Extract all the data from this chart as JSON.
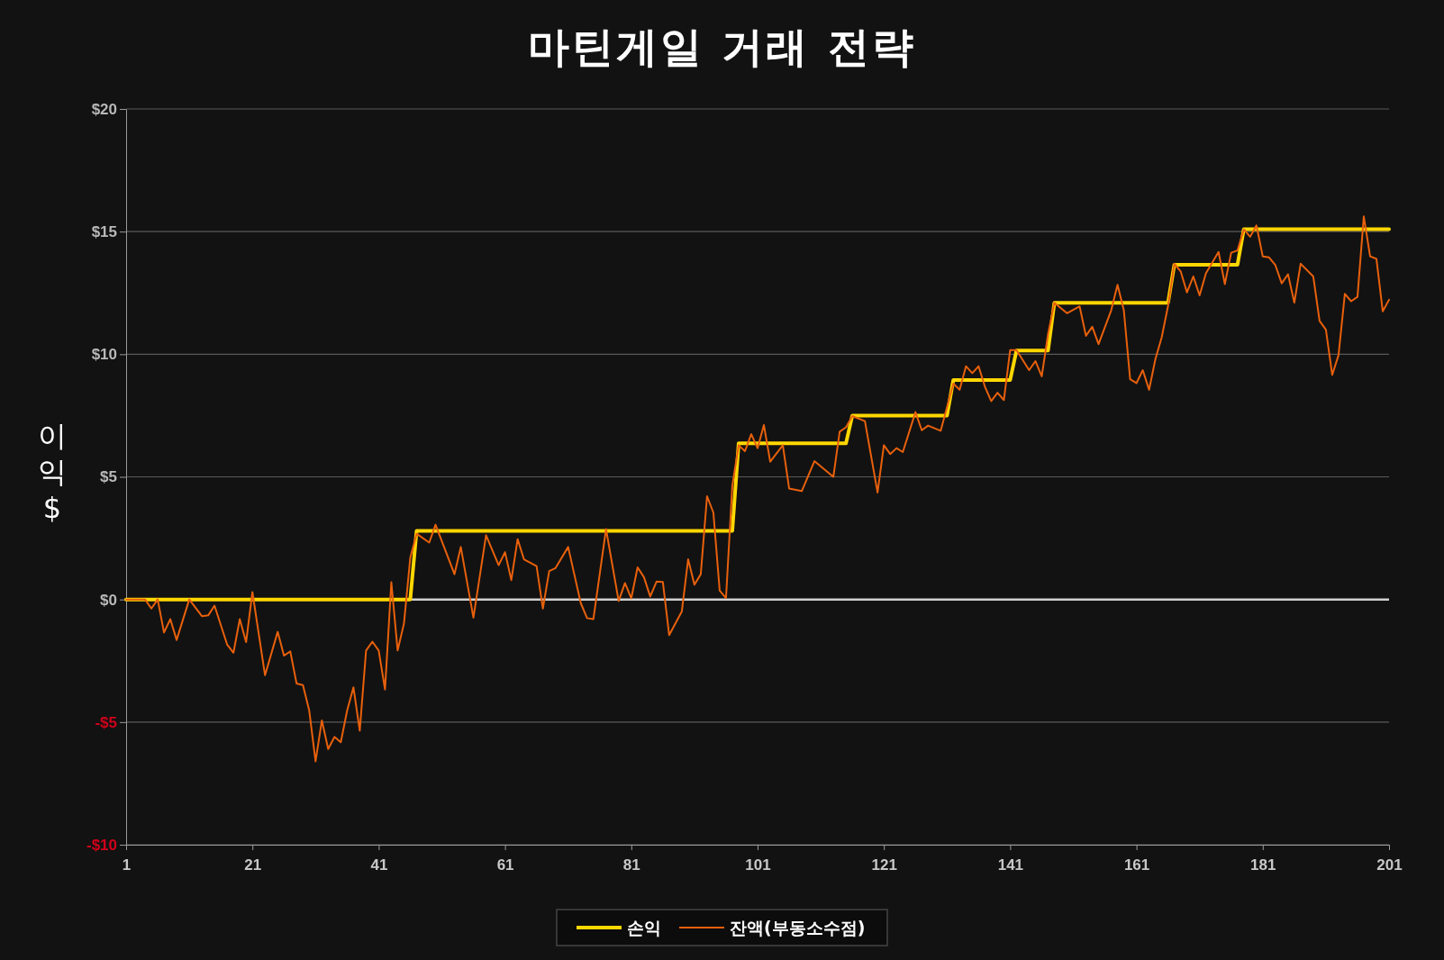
{
  "chart_data": {
    "type": "line",
    "title": "마틴게일 거래 전략",
    "ylabel": "이익 $",
    "xlim": [
      1,
      201
    ],
    "xticks": [
      1,
      21,
      41,
      61,
      81,
      101,
      121,
      141,
      161,
      181,
      201
    ],
    "ylim": [
      -10,
      20
    ],
    "yticks": [
      {
        "value": -10,
        "label": "-$10"
      },
      {
        "value": -5,
        "label": "-$5"
      },
      {
        "value": 0,
        "label": "$0"
      },
      {
        "value": 5,
        "label": "$5"
      },
      {
        "value": 10,
        "label": "$10"
      },
      {
        "value": 15,
        "label": "$15"
      },
      {
        "value": 20,
        "label": "$20"
      }
    ],
    "grid": "y",
    "legend": "bottom",
    "marker": "none",
    "line_style": "solid",
    "ref_lines": [
      {
        "axis": "y",
        "value": 0,
        "color": "#d0d0d0"
      }
    ],
    "series": [
      {
        "name": "손익",
        "color": "#ffd700",
        "x": [
          1,
          46,
          47,
          97,
          98,
          115,
          116,
          131,
          132,
          141,
          142,
          147,
          148,
          166,
          167,
          177,
          178,
          201
        ],
        "values": [
          0,
          0,
          2.8,
          2.8,
          6.37,
          6.37,
          7.5,
          7.5,
          8.95,
          8.95,
          10.15,
          10.15,
          12.1,
          12.1,
          13.65,
          13.65,
          15.1,
          15.1
        ]
      },
      {
        "name": "잔액(부동소수점)",
        "color": "#e8600c",
        "x": [
          1,
          4,
          5,
          6,
          7,
          8,
          9,
          11,
          13,
          14,
          15,
          17,
          18,
          19,
          20,
          21,
          23,
          25,
          26,
          27,
          28,
          29,
          30,
          31,
          32,
          33,
          34,
          35,
          36,
          37,
          38,
          39,
          40,
          41,
          42,
          43,
          44,
          45,
          46,
          47,
          49,
          50,
          53,
          54,
          56,
          58,
          60,
          61,
          62,
          63,
          64,
          66,
          67,
          68,
          69,
          71,
          73,
          74,
          75,
          77,
          79,
          80,
          81,
          82,
          83,
          84,
          85,
          86,
          87,
          89,
          90,
          91,
          92,
          93,
          94,
          95,
          96,
          97,
          98,
          99,
          100,
          101,
          102,
          103,
          105,
          106,
          108,
          110,
          113,
          114,
          115,
          116,
          118,
          120,
          121,
          122,
          123,
          124,
          126,
          127,
          128,
          130,
          132,
          133,
          134,
          135,
          136,
          137,
          138,
          139,
          140,
          141,
          142,
          144,
          145,
          146,
          147,
          148,
          150,
          152,
          153,
          154,
          155,
          157,
          158,
          159,
          160,
          161,
          162,
          163,
          164,
          165,
          166,
          167,
          168,
          169,
          170,
          171,
          172,
          174,
          175,
          176,
          177,
          178,
          179,
          180,
          181,
          182,
          183,
          184,
          185,
          186,
          187,
          189,
          190,
          191,
          192,
          193,
          194,
          195,
          196,
          197,
          198,
          199,
          200,
          201
        ],
        "values": [
          0,
          0,
          -0.37,
          0,
          -1.35,
          -0.8,
          -1.65,
          0,
          -0.68,
          -0.65,
          -0.25,
          -1.84,
          -2.17,
          -0.8,
          -1.74,
          0.3,
          -3.09,
          -1.32,
          -2.29,
          -2.12,
          -3.43,
          -3.49,
          -4.53,
          -6.6,
          -4.93,
          -6.1,
          -5.6,
          -5.82,
          -4.53,
          -3.58,
          -5.35,
          -2.08,
          -1.72,
          -2.08,
          -3.67,
          0.7,
          -2.08,
          -0.98,
          1.7,
          2.68,
          2.32,
          3.05,
          1.03,
          2.14,
          -0.74,
          2.62,
          1.4,
          1.93,
          0.79,
          2.46,
          1.64,
          1.36,
          -0.37,
          1.16,
          1.28,
          2.14,
          -0.15,
          -0.76,
          -0.8,
          2.87,
          -0.06,
          0.67,
          0.05,
          1.31,
          0.91,
          0.12,
          0.73,
          0.71,
          -1.45,
          -0.49,
          1.64,
          0.6,
          1.03,
          4.21,
          3.54,
          0.36,
          0.06,
          4.64,
          6.29,
          6.05,
          6.74,
          6.17,
          7.11,
          5.62,
          6.29,
          4.52,
          4.42,
          5.64,
          5.0,
          6.84,
          7.02,
          7.48,
          7.27,
          4.36,
          6.29,
          5.93,
          6.17,
          6.01,
          7.64,
          6.9,
          7.09,
          6.88,
          8.8,
          8.55,
          9.51,
          9.23,
          9.51,
          8.68,
          8.09,
          8.43,
          8.13,
          10.17,
          10.17,
          9.35,
          9.72,
          9.1,
          10.82,
          12.1,
          11.67,
          11.95,
          10.75,
          11.12,
          10.41,
          11.79,
          12.83,
          11.79,
          8.98,
          8.82,
          9.35,
          8.55,
          9.8,
          10.69,
          11.97,
          13.69,
          13.38,
          12.52,
          13.17,
          12.4,
          13.3,
          14.17,
          12.86,
          14.14,
          14.23,
          15.09,
          14.79,
          15.25,
          13.99,
          13.95,
          13.63,
          12.89,
          13.26,
          12.1,
          13.69,
          13.17,
          11.36,
          11.0,
          9.16,
          9.96,
          12.46,
          12.16,
          12.34,
          15.62,
          13.99,
          13.89,
          11.75,
          12.22
        ]
      }
    ]
  }
}
